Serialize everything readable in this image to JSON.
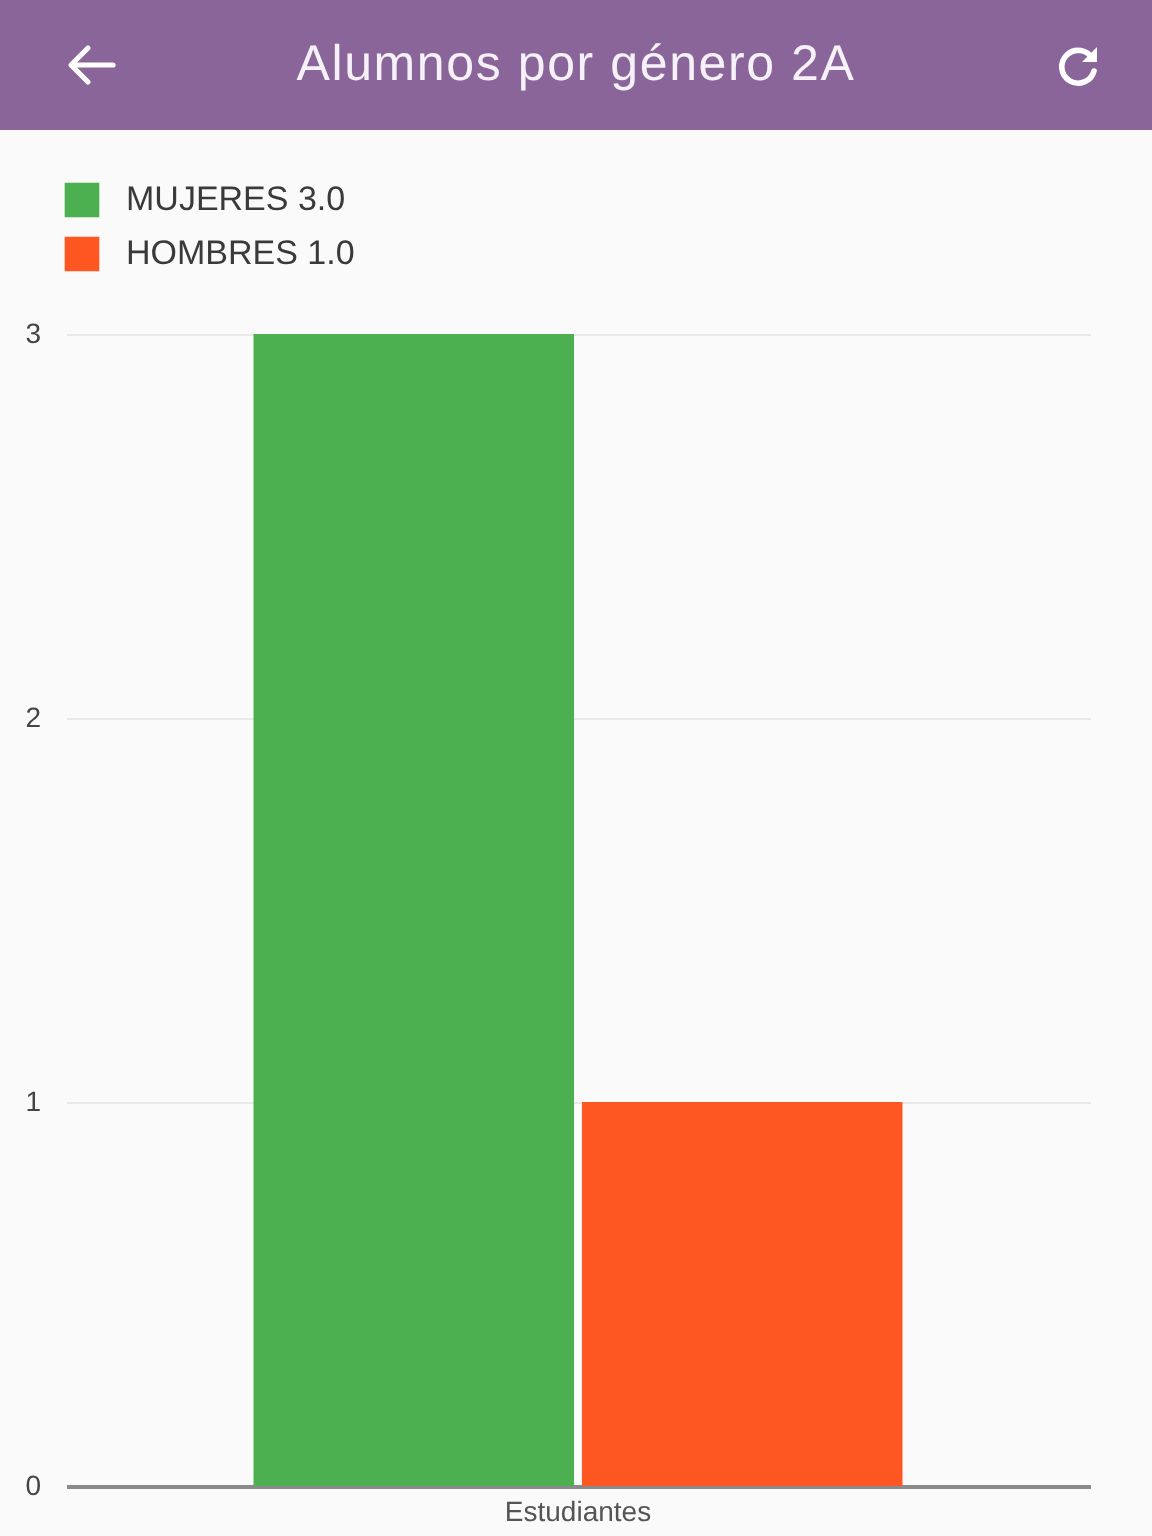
{
  "chart_data": {
    "type": "bar",
    "title": "Alumnos por género 2A",
    "categories": [
      "Estudiantes"
    ],
    "series": [
      {
        "name": "MUJERES  3.0",
        "color": "#4caf50",
        "values": [
          3
        ]
      },
      {
        "name": "HOMBRES  1.0",
        "color": "#ff5722",
        "values": [
          1
        ]
      }
    ],
    "ylim": [
      0,
      3
    ],
    "yticks": [
      0,
      1,
      2,
      3
    ],
    "grid": "y",
    "legend": "top left"
  }
}
